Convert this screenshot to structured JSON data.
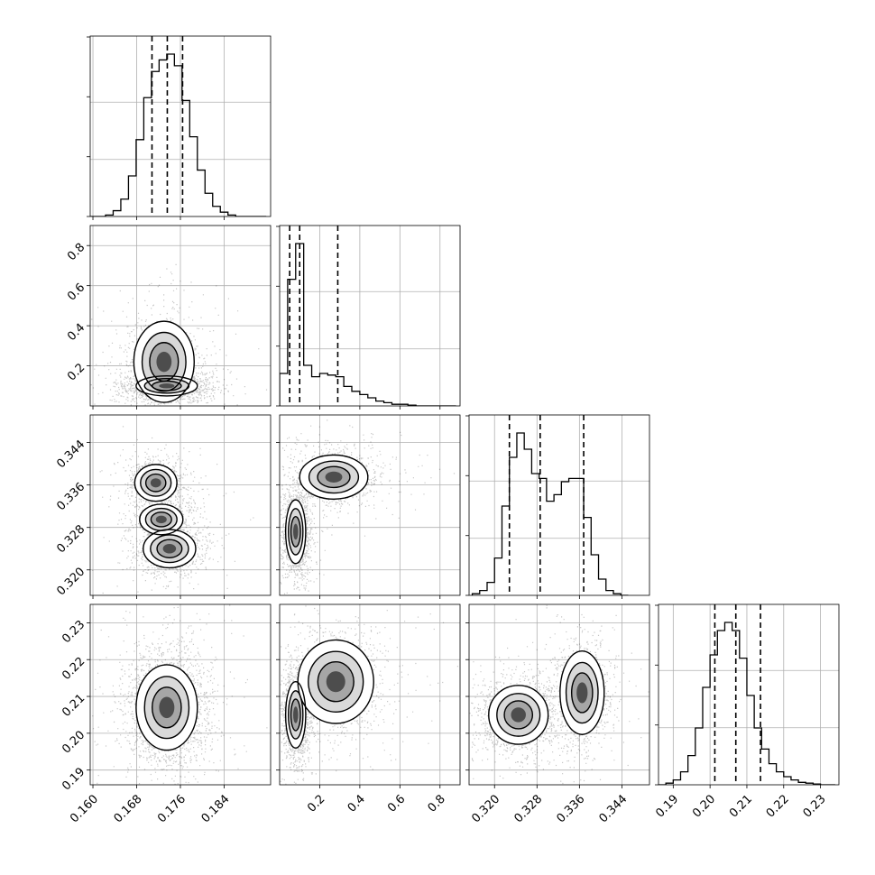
{
  "chart_data": {
    "type": "corner",
    "grid": true,
    "parameters": [
      {
        "id": "p0",
        "range": [
          0.1595,
          0.1925
        ],
        "ticks": [
          0.16,
          0.168,
          0.176,
          0.184
        ],
        "tick_labels": [
          "0.160",
          "0.168",
          "0.176",
          "0.184"
        ],
        "quantiles": [
          0.1708,
          0.1736,
          0.1764
        ],
        "histogram": {
          "edges": [
            0.1595,
            0.1609,
            0.1623,
            0.1637,
            0.1651,
            0.1665,
            0.1679,
            0.1693,
            0.1707,
            0.1721,
            0.1735,
            0.1749,
            0.1763,
            0.1777,
            0.1791,
            0.1805,
            0.1819,
            0.1833,
            0.1847,
            0.1861,
            0.1875,
            0.1889,
            0.1903,
            0.1917
          ],
          "heights": [
            0,
            0,
            1,
            4,
            12,
            28,
            53,
            82,
            100,
            108,
            112,
            104,
            80,
            55,
            32,
            16,
            7,
            3,
            1,
            0,
            0,
            0,
            0
          ]
        }
      },
      {
        "id": "p1",
        "range": [
          0.0,
          0.9
        ],
        "ticks": [
          0.2,
          0.4,
          0.6,
          0.8
        ],
        "tick_labels": [
          "0.2",
          "0.4",
          "0.6",
          "0.8"
        ],
        "quantiles": [
          0.05,
          0.1,
          0.29
        ],
        "histogram": {
          "edges": [
            0.0,
            0.04,
            0.08,
            0.12,
            0.16,
            0.2,
            0.24,
            0.28,
            0.32,
            0.36,
            0.4,
            0.44,
            0.48,
            0.52,
            0.56,
            0.6,
            0.64,
            0.68,
            0.72,
            0.76,
            0.8,
            0.84,
            0.88
          ],
          "heights": [
            20,
            78,
            100,
            25,
            18,
            20,
            19,
            18,
            12,
            9,
            7,
            5,
            3,
            2,
            1,
            1,
            0.5,
            0,
            0,
            0,
            0,
            0
          ]
        }
      },
      {
        "id": "p2",
        "range": [
          0.3152,
          0.3492
        ],
        "ticks": [
          0.32,
          0.328,
          0.336,
          0.344
        ],
        "tick_labels": [
          "0.320",
          "0.328",
          "0.336",
          "0.344"
        ],
        "quantiles": [
          0.3228,
          0.3286,
          0.3368
        ],
        "histogram": {
          "edges": [
            0.3158,
            0.3172,
            0.3186,
            0.32,
            0.3214,
            0.3228,
            0.3242,
            0.3256,
            0.327,
            0.3284,
            0.3298,
            0.3312,
            0.3326,
            0.334,
            0.3354,
            0.3368,
            0.3382,
            0.3396,
            0.341,
            0.3424,
            0.3438,
            0.3452
          ],
          "heights": [
            1,
            3,
            8,
            23,
            55,
            85,
            100,
            90,
            75,
            72,
            58,
            62,
            70,
            72,
            72,
            48,
            25,
            10,
            3,
            1,
            0
          ]
        }
      },
      {
        "id": "p3",
        "range": [
          0.186,
          0.235
        ],
        "ticks": [
          0.19,
          0.2,
          0.21,
          0.22,
          0.23
        ],
        "tick_labels": [
          "0.19",
          "0.20",
          "0.21",
          "0.22",
          "0.23"
        ],
        "quantiles": [
          0.2013,
          0.207,
          0.2137
        ],
        "histogram": {
          "edges": [
            0.186,
            0.188,
            0.19,
            0.192,
            0.194,
            0.196,
            0.198,
            0.2,
            0.202,
            0.204,
            0.206,
            0.208,
            0.21,
            0.212,
            0.214,
            0.216,
            0.218,
            0.22,
            0.222,
            0.224,
            0.226,
            0.228,
            0.23,
            0.232,
            0.234
          ],
          "heights": [
            0,
            1,
            3,
            8,
            18,
            35,
            60,
            80,
            95,
            100,
            95,
            78,
            55,
            35,
            22,
            13,
            8,
            5,
            3,
            1.5,
            1,
            0.5,
            0,
            0
          ]
        }
      }
    ],
    "density_modes": [
      {
        "pair": [
          1,
          0
        ],
        "modes": [
          {
            "x": 0.1735,
            "y": 0.1,
            "sx": 0.0028,
            "sy": 0.025,
            "w": 0.65
          },
          {
            "x": 0.173,
            "y": 0.22,
            "sx": 0.003,
            "sy": 0.11,
            "w": 0.35
          }
        ]
      },
      {
        "pair": [
          2,
          0
        ],
        "modes": [
          {
            "x": 0.1715,
            "y": 0.3364,
            "sx": 0.002,
            "sy": 0.0018,
            "w": 0.35
          },
          {
            "x": 0.174,
            "y": 0.324,
            "sx": 0.0024,
            "sy": 0.0018,
            "w": 0.45
          },
          {
            "x": 0.1725,
            "y": 0.3295,
            "sx": 0.0022,
            "sy": 0.0016,
            "w": 0.2
          }
        ]
      },
      {
        "pair": [
          3,
          0
        ],
        "modes": [
          {
            "x": 0.1735,
            "y": 0.207,
            "sx": 0.0028,
            "sy": 0.0058,
            "w": 1.0
          }
        ]
      },
      {
        "pair": [
          2,
          1
        ],
        "modes": [
          {
            "x": 0.08,
            "y": 0.3272,
            "sx": 0.025,
            "sy": 0.003,
            "w": 0.6
          },
          {
            "x": 0.27,
            "y": 0.3375,
            "sx": 0.09,
            "sy": 0.0022,
            "w": 0.4
          }
        ]
      },
      {
        "pair": [
          3,
          1
        ],
        "modes": [
          {
            "x": 0.08,
            "y": 0.205,
            "sx": 0.025,
            "sy": 0.0045,
            "w": 0.6
          },
          {
            "x": 0.28,
            "y": 0.214,
            "sx": 0.1,
            "sy": 0.006,
            "w": 0.4
          }
        ]
      },
      {
        "pair": [
          3,
          2
        ],
        "modes": [
          {
            "x": 0.3245,
            "y": 0.205,
            "sx": 0.0028,
            "sy": 0.004,
            "w": 0.6
          },
          {
            "x": 0.3365,
            "y": 0.211,
            "sx": 0.0022,
            "sy": 0.006,
            "w": 0.4
          }
        ]
      }
    ]
  }
}
